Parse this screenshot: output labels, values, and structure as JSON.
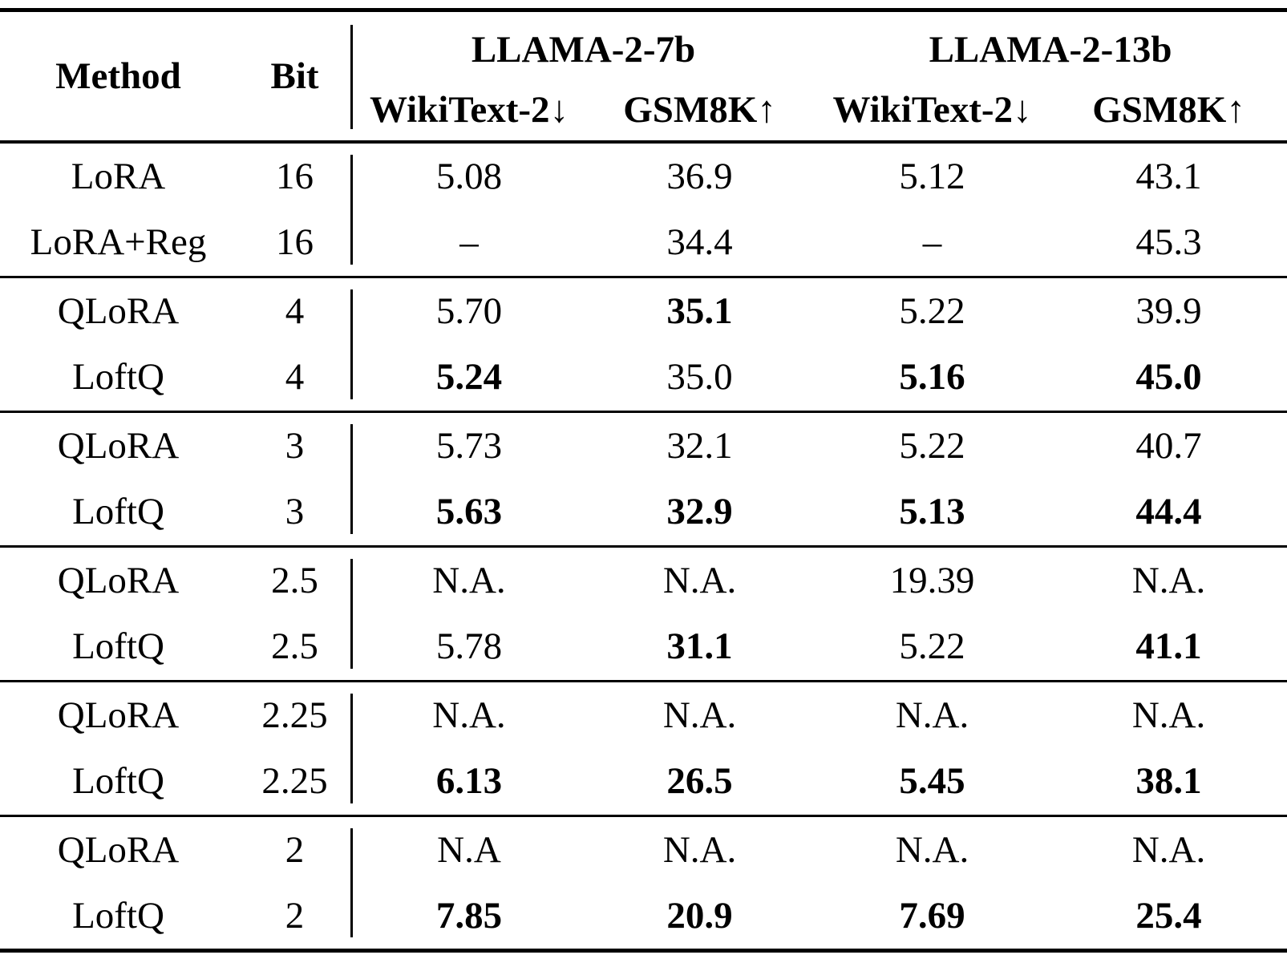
{
  "table": {
    "header": {
      "method": "Method",
      "bit": "Bit",
      "group_7b": "LLAMA-2-7b",
      "group_13b": "LLAMA-2-13b",
      "sub_headers": [
        "WikiText-2↓",
        "GSM8K↑",
        "WikiText-2↓",
        "GSM8K↑"
      ]
    },
    "groups": [
      {
        "rows": [
          {
            "method": "LoRA",
            "bit": "16",
            "values": [
              {
                "text": "5.08",
                "bold": false
              },
              {
                "text": "36.9",
                "bold": false
              },
              {
                "text": "5.12",
                "bold": false
              },
              {
                "text": "43.1",
                "bold": false
              }
            ]
          },
          {
            "method": "LoRA+Reg",
            "bit": "16",
            "values": [
              {
                "text": "–",
                "bold": false
              },
              {
                "text": "34.4",
                "bold": false
              },
              {
                "text": "–",
                "bold": false
              },
              {
                "text": "45.3",
                "bold": false
              }
            ]
          }
        ]
      },
      {
        "rows": [
          {
            "method": "QLoRA",
            "bit": "4",
            "values": [
              {
                "text": "5.70",
                "bold": false
              },
              {
                "text": "35.1",
                "bold": true
              },
              {
                "text": "5.22",
                "bold": false
              },
              {
                "text": "39.9",
                "bold": false
              }
            ]
          },
          {
            "method": "LoftQ",
            "bit": "4",
            "values": [
              {
                "text": "5.24",
                "bold": true
              },
              {
                "text": "35.0",
                "bold": false
              },
              {
                "text": "5.16",
                "bold": true
              },
              {
                "text": "45.0",
                "bold": true
              }
            ]
          }
        ]
      },
      {
        "rows": [
          {
            "method": "QLoRA",
            "bit": "3",
            "values": [
              {
                "text": "5.73",
                "bold": false
              },
              {
                "text": "32.1",
                "bold": false
              },
              {
                "text": "5.22",
                "bold": false
              },
              {
                "text": "40.7",
                "bold": false
              }
            ]
          },
          {
            "method": "LoftQ",
            "bit": "3",
            "values": [
              {
                "text": "5.63",
                "bold": true
              },
              {
                "text": "32.9",
                "bold": true
              },
              {
                "text": "5.13",
                "bold": true
              },
              {
                "text": "44.4",
                "bold": true
              }
            ]
          }
        ]
      },
      {
        "rows": [
          {
            "method": "QLoRA",
            "bit": "2.5",
            "values": [
              {
                "text": "N.A.",
                "bold": false
              },
              {
                "text": "N.A.",
                "bold": false
              },
              {
                "text": "19.39",
                "bold": false
              },
              {
                "text": "N.A.",
                "bold": false
              }
            ]
          },
          {
            "method": "LoftQ",
            "bit": "2.5",
            "values": [
              {
                "text": "5.78",
                "bold": false
              },
              {
                "text": "31.1",
                "bold": true
              },
              {
                "text": "5.22",
                "bold": false
              },
              {
                "text": "41.1",
                "bold": true
              }
            ]
          }
        ]
      },
      {
        "rows": [
          {
            "method": "QLoRA",
            "bit": "2.25",
            "values": [
              {
                "text": "N.A.",
                "bold": false
              },
              {
                "text": "N.A.",
                "bold": false
              },
              {
                "text": "N.A.",
                "bold": false
              },
              {
                "text": "N.A.",
                "bold": false
              }
            ]
          },
          {
            "method": "LoftQ",
            "bit": "2.25",
            "values": [
              {
                "text": "6.13",
                "bold": true
              },
              {
                "text": "26.5",
                "bold": true
              },
              {
                "text": "5.45",
                "bold": true
              },
              {
                "text": "38.1",
                "bold": true
              }
            ]
          }
        ]
      },
      {
        "rows": [
          {
            "method": "QLoRA",
            "bit": "2",
            "values": [
              {
                "text": "N.A",
                "bold": false
              },
              {
                "text": "N.A.",
                "bold": false
              },
              {
                "text": "N.A.",
                "bold": false
              },
              {
                "text": "N.A.",
                "bold": false
              }
            ]
          },
          {
            "method": "LoftQ",
            "bit": "2",
            "values": [
              {
                "text": "7.85",
                "bold": true
              },
              {
                "text": "20.9",
                "bold": true
              },
              {
                "text": "7.69",
                "bold": true
              },
              {
                "text": "25.4",
                "bold": true
              }
            ]
          }
        ]
      }
    ]
  }
}
